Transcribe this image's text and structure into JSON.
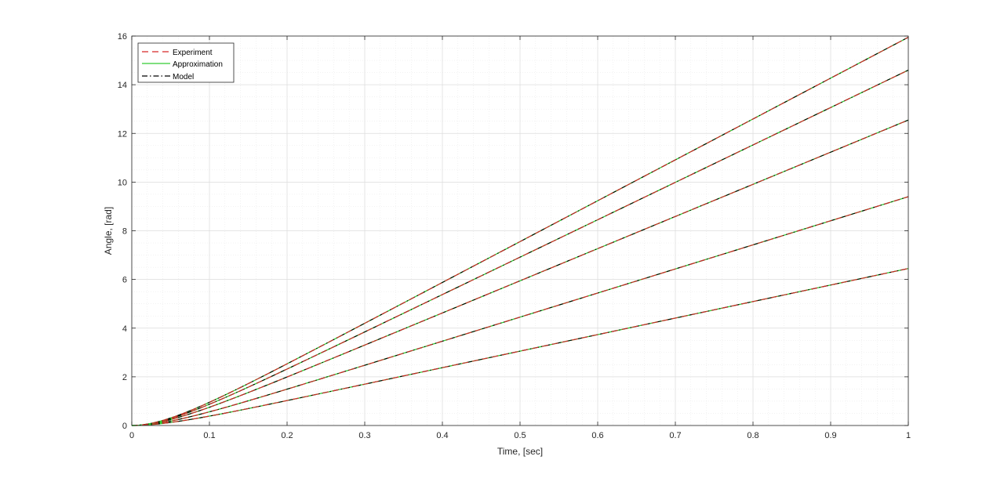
{
  "chart_data": {
    "type": "line",
    "title": "",
    "xlabel": "Time, [sec]",
    "ylabel": "Angle, [rad]",
    "xlim": [
      0,
      1
    ],
    "ylim": [
      0,
      16
    ],
    "xticks": [
      0,
      0.1,
      0.2,
      0.3,
      0.4,
      0.5,
      0.6,
      0.7,
      0.8,
      0.9,
      1
    ],
    "xtick_labels": [
      "0",
      "0.1",
      "0.2",
      "0.3",
      "0.4",
      "0.5",
      "0.6",
      "0.7",
      "0.8",
      "0.9",
      "1"
    ],
    "yticks": [
      0,
      2,
      4,
      6,
      8,
      10,
      12,
      14,
      16
    ],
    "ytick_labels": [
      "0",
      "2",
      "4",
      "6",
      "8",
      "10",
      "12",
      "14",
      "16"
    ],
    "grid": true,
    "minor_grid": true,
    "legend_position": "top-left",
    "legend": [
      {
        "label": "Experiment",
        "style": "dashed",
        "color": "#d62728"
      },
      {
        "label": "Approximation",
        "style": "solid",
        "color": "#33cc33"
      },
      {
        "label": "Model",
        "style": "dashdot",
        "color": "#000000"
      }
    ],
    "curve_families": [
      {
        "final_value": 6.45,
        "time_constant": 0.05
      },
      {
        "final_value": 9.4,
        "time_constant": 0.05
      },
      {
        "final_value": 12.55,
        "time_constant": 0.05
      },
      {
        "final_value": 14.6,
        "time_constant": 0.05
      },
      {
        "final_value": 15.95,
        "time_constant": 0.05
      }
    ],
    "note": "Each family plots Experiment, Approximation and Model curves that nearly coincide; values rise from 0 at t=0 to final_value at t=1 with an initial curved ramp."
  }
}
